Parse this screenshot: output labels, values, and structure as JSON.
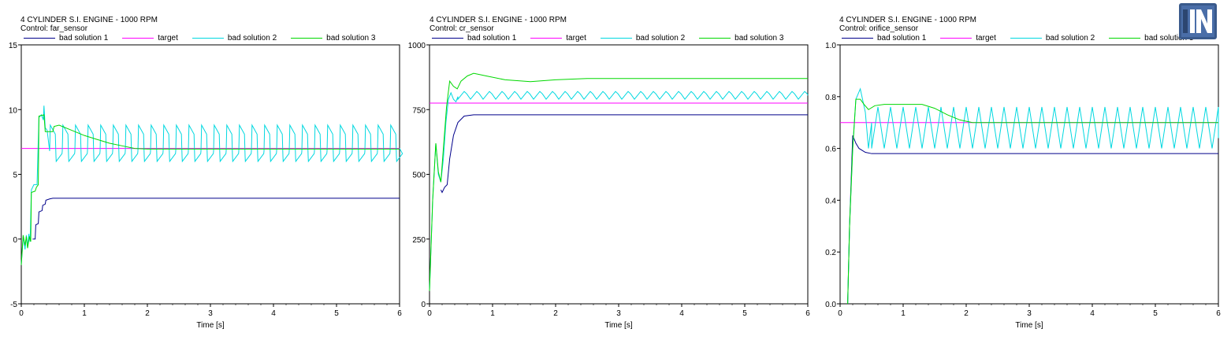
{
  "chart_data": [
    {
      "type": "line",
      "title": "4 CYLINDER S.I. ENGINE - 1000 RPM",
      "subtitle": "Control: far_sensor",
      "xlabel": "Time  [s]",
      "ylabel": "",
      "xlim": [
        0,
        6
      ],
      "ylim": [
        -5,
        15
      ],
      "xticks": [
        0,
        1,
        2,
        3,
        4,
        5,
        6
      ],
      "yticks": [
        -5,
        0,
        5,
        10,
        15
      ],
      "grid": false,
      "legend_position": "top-left",
      "series": [
        {
          "name": "bad solution 1",
          "color": "#00008b",
          "kind": "path",
          "points": [
            [
              0.18,
              0
            ],
            [
              0.22,
              0
            ],
            [
              0.23,
              1.1
            ],
            [
              0.27,
              1.2
            ],
            [
              0.28,
              2.1
            ],
            [
              0.33,
              2.2
            ],
            [
              0.34,
              2.6
            ],
            [
              0.38,
              2.7
            ],
            [
              0.39,
              3.0
            ],
            [
              0.45,
              3.1
            ],
            [
              0.5,
              3.15
            ],
            [
              1,
              3.15
            ],
            [
              2,
              3.15
            ],
            [
              6,
              3.15
            ]
          ]
        },
        {
          "name": "target",
          "color": "#ff00ff",
          "kind": "constant",
          "value": 7.0
        },
        {
          "name": "bad solution 2",
          "color": "#00d8e0",
          "kind": "oscillation",
          "head": [
            [
              0,
              -2
            ],
            [
              0.03,
              0.2
            ],
            [
              0.06,
              -0.8
            ],
            [
              0.08,
              0.3
            ],
            [
              0.1,
              -0.6
            ],
            [
              0.12,
              0.4
            ],
            [
              0.14,
              -0.2
            ],
            [
              0.16,
              3.8
            ],
            [
              0.2,
              4.2
            ],
            [
              0.25,
              4.2
            ],
            [
              0.28,
              9.4
            ],
            [
              0.32,
              9.6
            ],
            [
              0.35,
              9.2
            ],
            [
              0.36,
              10.3
            ],
            [
              0.38,
              8.6
            ],
            [
              0.41,
              8.4
            ]
          ],
          "t_start": 0.45,
          "t_end": 6.0,
          "period": 0.2,
          "low": 6.0,
          "high": 8.8,
          "mid": 7.0
        },
        {
          "name": "bad solution 3",
          "color": "#00d800",
          "kind": "path",
          "points": [
            [
              0,
              -2
            ],
            [
              0.03,
              0.3
            ],
            [
              0.06,
              -0.5
            ],
            [
              0.08,
              0.2
            ],
            [
              0.1,
              -0.7
            ],
            [
              0.13,
              0.2
            ],
            [
              0.15,
              -0.2
            ],
            [
              0.16,
              3.6
            ],
            [
              0.22,
              3.7
            ],
            [
              0.24,
              4.0
            ],
            [
              0.27,
              4.2
            ],
            [
              0.28,
              9.5
            ],
            [
              0.36,
              9.6
            ],
            [
              0.38,
              8.3
            ],
            [
              0.5,
              8.3
            ],
            [
              0.52,
              8.7
            ],
            [
              0.6,
              8.8
            ],
            [
              0.8,
              8.4
            ],
            [
              1.0,
              8.0
            ],
            [
              1.2,
              7.7
            ],
            [
              1.4,
              7.4
            ],
            [
              1.6,
              7.2
            ],
            [
              1.8,
              7.0
            ],
            [
              2.0,
              6.95
            ],
            [
              3,
              6.95
            ],
            [
              6,
              6.95
            ]
          ]
        }
      ]
    },
    {
      "type": "line",
      "title": "4 CYLINDER S.I. ENGINE - 1000 RPM",
      "subtitle": "Control: cr_sensor",
      "xlabel": "Time  [s]",
      "ylabel": "",
      "xlim": [
        0,
        6
      ],
      "ylim": [
        0,
        1000
      ],
      "xticks": [
        0,
        1,
        2,
        3,
        4,
        5,
        6
      ],
      "yticks": [
        0,
        250,
        500,
        750,
        1000
      ],
      "grid": false,
      "legend_position": "top-left",
      "series": [
        {
          "name": "bad solution 1",
          "color": "#00008b",
          "kind": "path",
          "points": [
            [
              0.18,
              440
            ],
            [
              0.2,
              430
            ],
            [
              0.24,
              450
            ],
            [
              0.28,
              460
            ],
            [
              0.32,
              560
            ],
            [
              0.38,
              650
            ],
            [
              0.45,
              700
            ],
            [
              0.55,
              725
            ],
            [
              0.7,
              730
            ],
            [
              1,
              730
            ],
            [
              6,
              730
            ]
          ]
        },
        {
          "name": "target",
          "color": "#ff00ff",
          "kind": "constant",
          "value": 775
        },
        {
          "name": "bad solution 2",
          "color": "#00d8e0",
          "kind": "oscillation",
          "head": [
            [
              0,
              50
            ],
            [
              0.05,
              400
            ],
            [
              0.1,
              620
            ],
            [
              0.14,
              500
            ],
            [
              0.18,
              470
            ],
            [
              0.22,
              560
            ],
            [
              0.26,
              700
            ],
            [
              0.3,
              790
            ],
            [
              0.34,
              815
            ],
            [
              0.38,
              790
            ],
            [
              0.42,
              780
            ],
            [
              0.45,
              800
            ]
          ],
          "t_start": 0.45,
          "t_end": 6.0,
          "period": 0.2,
          "low": 790,
          "high": 820,
          "mid": 805
        },
        {
          "name": "bad solution 3",
          "color": "#00d800",
          "kind": "path",
          "points": [
            [
              0,
              50
            ],
            [
              0.05,
              400
            ],
            [
              0.1,
              620
            ],
            [
              0.14,
              510
            ],
            [
              0.18,
              470
            ],
            [
              0.22,
              600
            ],
            [
              0.27,
              760
            ],
            [
              0.32,
              860
            ],
            [
              0.38,
              840
            ],
            [
              0.44,
              830
            ],
            [
              0.5,
              860
            ],
            [
              0.6,
              880
            ],
            [
              0.7,
              890
            ],
            [
              0.9,
              880
            ],
            [
              1.2,
              865
            ],
            [
              1.6,
              858
            ],
            [
              2.0,
              865
            ],
            [
              2.5,
              870
            ],
            [
              3,
              870
            ],
            [
              6,
              870
            ]
          ]
        }
      ]
    },
    {
      "type": "line",
      "title": "4 CYLINDER S.I. ENGINE - 1000 RPM",
      "subtitle": "Control: orifice_sensor",
      "xlabel": "Time  [s]",
      "ylabel": "",
      "xlim": [
        0,
        6
      ],
      "ylim": [
        0.0,
        1.0
      ],
      "xticks": [
        0,
        1,
        2,
        3,
        4,
        5,
        6
      ],
      "yticks": [
        0.0,
        0.2,
        0.4,
        0.6,
        0.8,
        1.0
      ],
      "grid": false,
      "legend_position": "top-left",
      "series": [
        {
          "name": "bad solution 1",
          "color": "#00008b",
          "kind": "path",
          "points": [
            [
              0.12,
              0
            ],
            [
              0.15,
              0.3
            ],
            [
              0.2,
              0.65
            ],
            [
              0.25,
              0.62
            ],
            [
              0.3,
              0.6
            ],
            [
              0.4,
              0.585
            ],
            [
              0.5,
              0.58
            ],
            [
              1,
              0.58
            ],
            [
              6,
              0.58
            ]
          ]
        },
        {
          "name": "target",
          "color": "#ff00ff",
          "kind": "constant",
          "value": 0.7
        },
        {
          "name": "bad solution 2",
          "color": "#00d8e0",
          "kind": "oscillation",
          "head": [
            [
              0.12,
              0
            ],
            [
              0.15,
              0.3
            ],
            [
              0.2,
              0.6
            ],
            [
              0.25,
              0.79
            ],
            [
              0.32,
              0.83
            ],
            [
              0.4,
              0.74
            ],
            [
              0.45,
              0.6
            ],
            [
              0.5,
              0.7
            ]
          ],
          "t_start": 0.5,
          "t_end": 6.0,
          "period": 0.2,
          "low": 0.6,
          "high": 0.76,
          "mid": 0.68
        },
        {
          "name": "bad solution 3",
          "color": "#00d800",
          "kind": "path",
          "points": [
            [
              0.12,
              0
            ],
            [
              0.15,
              0.3
            ],
            [
              0.2,
              0.6
            ],
            [
              0.25,
              0.79
            ],
            [
              0.32,
              0.79
            ],
            [
              0.38,
              0.77
            ],
            [
              0.45,
              0.75
            ],
            [
              0.55,
              0.765
            ],
            [
              0.7,
              0.77
            ],
            [
              1.0,
              0.77
            ],
            [
              1.3,
              0.77
            ],
            [
              1.5,
              0.755
            ],
            [
              1.7,
              0.73
            ],
            [
              1.9,
              0.71
            ],
            [
              2.1,
              0.7
            ],
            [
              3,
              0.7
            ],
            [
              6,
              0.7
            ]
          ]
        }
      ]
    }
  ],
  "logo": {
    "name": "wave-logo-icon",
    "color": "#3a5a8c"
  }
}
